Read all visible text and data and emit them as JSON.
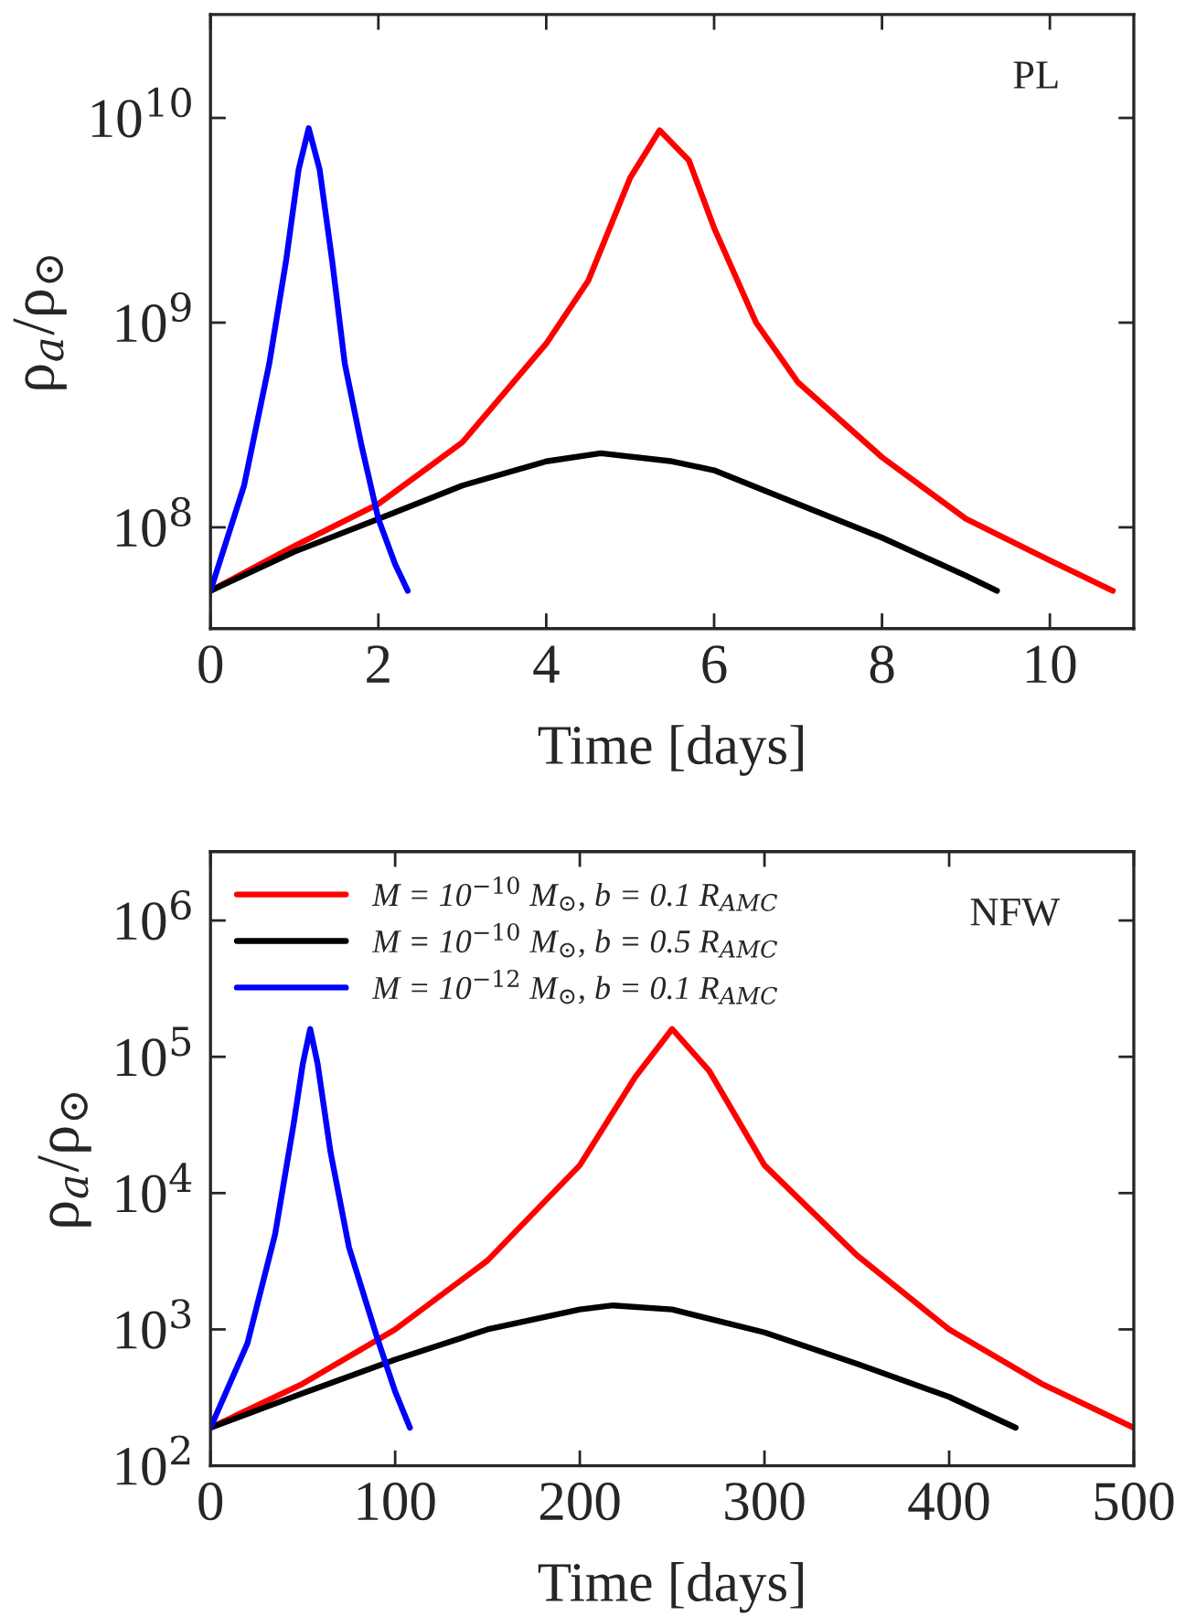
{
  "chart_data": [
    {
      "type": "line",
      "xlabel": "Time [days]",
      "ylabel": "ρ$_{a}$/ρ$_{⊙}$",
      "log": "y",
      "annotations": [
        "PL"
      ],
      "legend": false,
      "grid": false,
      "xlim": [
        0,
        11
      ],
      "xticks": [
        0,
        2,
        4,
        6,
        8,
        10
      ],
      "ylim": [
        32000000.0,
        32000000000.0
      ],
      "yticks": [
        {
          "value": 100000000.0,
          "label": "10$^{8}$"
        },
        {
          "value": 1000000000.0,
          "label": "10$^{9}$"
        },
        {
          "value": 10000000000.0,
          "label": "10$^{10}$"
        }
      ],
      "series": [
        {
          "color": "#ff0000",
          "x": [
            0,
            1,
            2,
            3,
            4,
            4.5,
            5,
            5.35,
            5.7,
            6,
            6.5,
            7,
            8,
            9,
            10,
            10.75
          ],
          "values": [
            49000000.0,
            81000000.0,
            130000000.0,
            260000000.0,
            790000000.0,
            1600000000.0,
            5100000000.0,
            8700000000.0,
            6200000000.0,
            2900000000.0,
            1000000000.0,
            510000000.0,
            220000000.0,
            110000000.0,
            69000000.0,
            49000000.0
          ]
        },
        {
          "color": "#000000",
          "x": [
            0,
            1,
            2,
            3,
            4,
            4.65,
            5.5,
            6,
            7,
            8,
            9,
            9.37
          ],
          "values": [
            49000000.0,
            76000000.0,
            110000000.0,
            160000000.0,
            210000000.0,
            230000000.0,
            210000000.0,
            190000000.0,
            130000000.0,
            89000000.0,
            58000000.0,
            49000000.0
          ]
        },
        {
          "color": "#0000ff",
          "x": [
            0,
            0.4,
            0.7,
            0.9,
            1.05,
            1.17,
            1.3,
            1.45,
            1.6,
            1.8,
            2.0,
            2.2,
            2.35
          ],
          "values": [
            49000000.0,
            160000000.0,
            630000000.0,
            2000000000.0,
            5600000000.0,
            8900000000.0,
            5600000000.0,
            2000000000.0,
            630000000.0,
            250000000.0,
            110000000.0,
            66000000.0,
            49000000.0
          ]
        }
      ]
    },
    {
      "type": "line",
      "xlabel": "Time [days]",
      "ylabel": "ρ$_{a}$/ρ$_{⊙}$",
      "log": "y",
      "annotations": [
        "NFW"
      ],
      "legend": "top left",
      "grid": false,
      "xlim": [
        0,
        500
      ],
      "xticks": [
        0,
        100,
        200,
        300,
        400,
        500
      ],
      "ylim": [
        100,
        3200000.0
      ],
      "yticks": [
        {
          "value": 100,
          "label": "10$^{2}$"
        },
        {
          "value": 1000,
          "label": "10$^{3}$"
        },
        {
          "value": 10000,
          "label": "10$^{4}$"
        },
        {
          "value": 100000,
          "label": "10$^{5}$"
        },
        {
          "value": 1000000,
          "label": "10$^{6}$"
        }
      ],
      "series": [
        {
          "name": "M = 10$^{−10}$ M$_{⊙}$, b = 0.1 R$_{AMC}$",
          "color": "#ff0000",
          "x": [
            0,
            50,
            100,
            150,
            200,
            230,
            250,
            270,
            300,
            350,
            400,
            450,
            500
          ],
          "values": [
            190,
            400,
            1000,
            3200,
            16000,
            71000,
            160000,
            79000,
            16000,
            3500,
            1000,
            400,
            190
          ]
        },
        {
          "name": "M = 10$^{−10}$ M$_{⊙}$, b = 0.5 R$_{AMC}$",
          "color": "#000000",
          "x": [
            0,
            50,
            100,
            150,
            200,
            218,
            250,
            300,
            350,
            400,
            436
          ],
          "values": [
            190,
            340,
            600,
            1000,
            1400,
            1500,
            1400,
            950,
            560,
            320,
            190
          ]
        },
        {
          "name": "M = 10$^{−12}$ M$_{⊙}$, b = 0.1 R$_{AMC}$",
          "color": "#0000ff",
          "x": [
            0,
            20,
            35,
            45,
            50,
            54,
            58,
            65,
            75,
            90,
            100,
            108
          ],
          "values": [
            190,
            790,
            5000,
            32000,
            89000,
            160000,
            89000,
            20000,
            4000,
            890,
            350,
            190
          ]
        }
      ]
    }
  ]
}
